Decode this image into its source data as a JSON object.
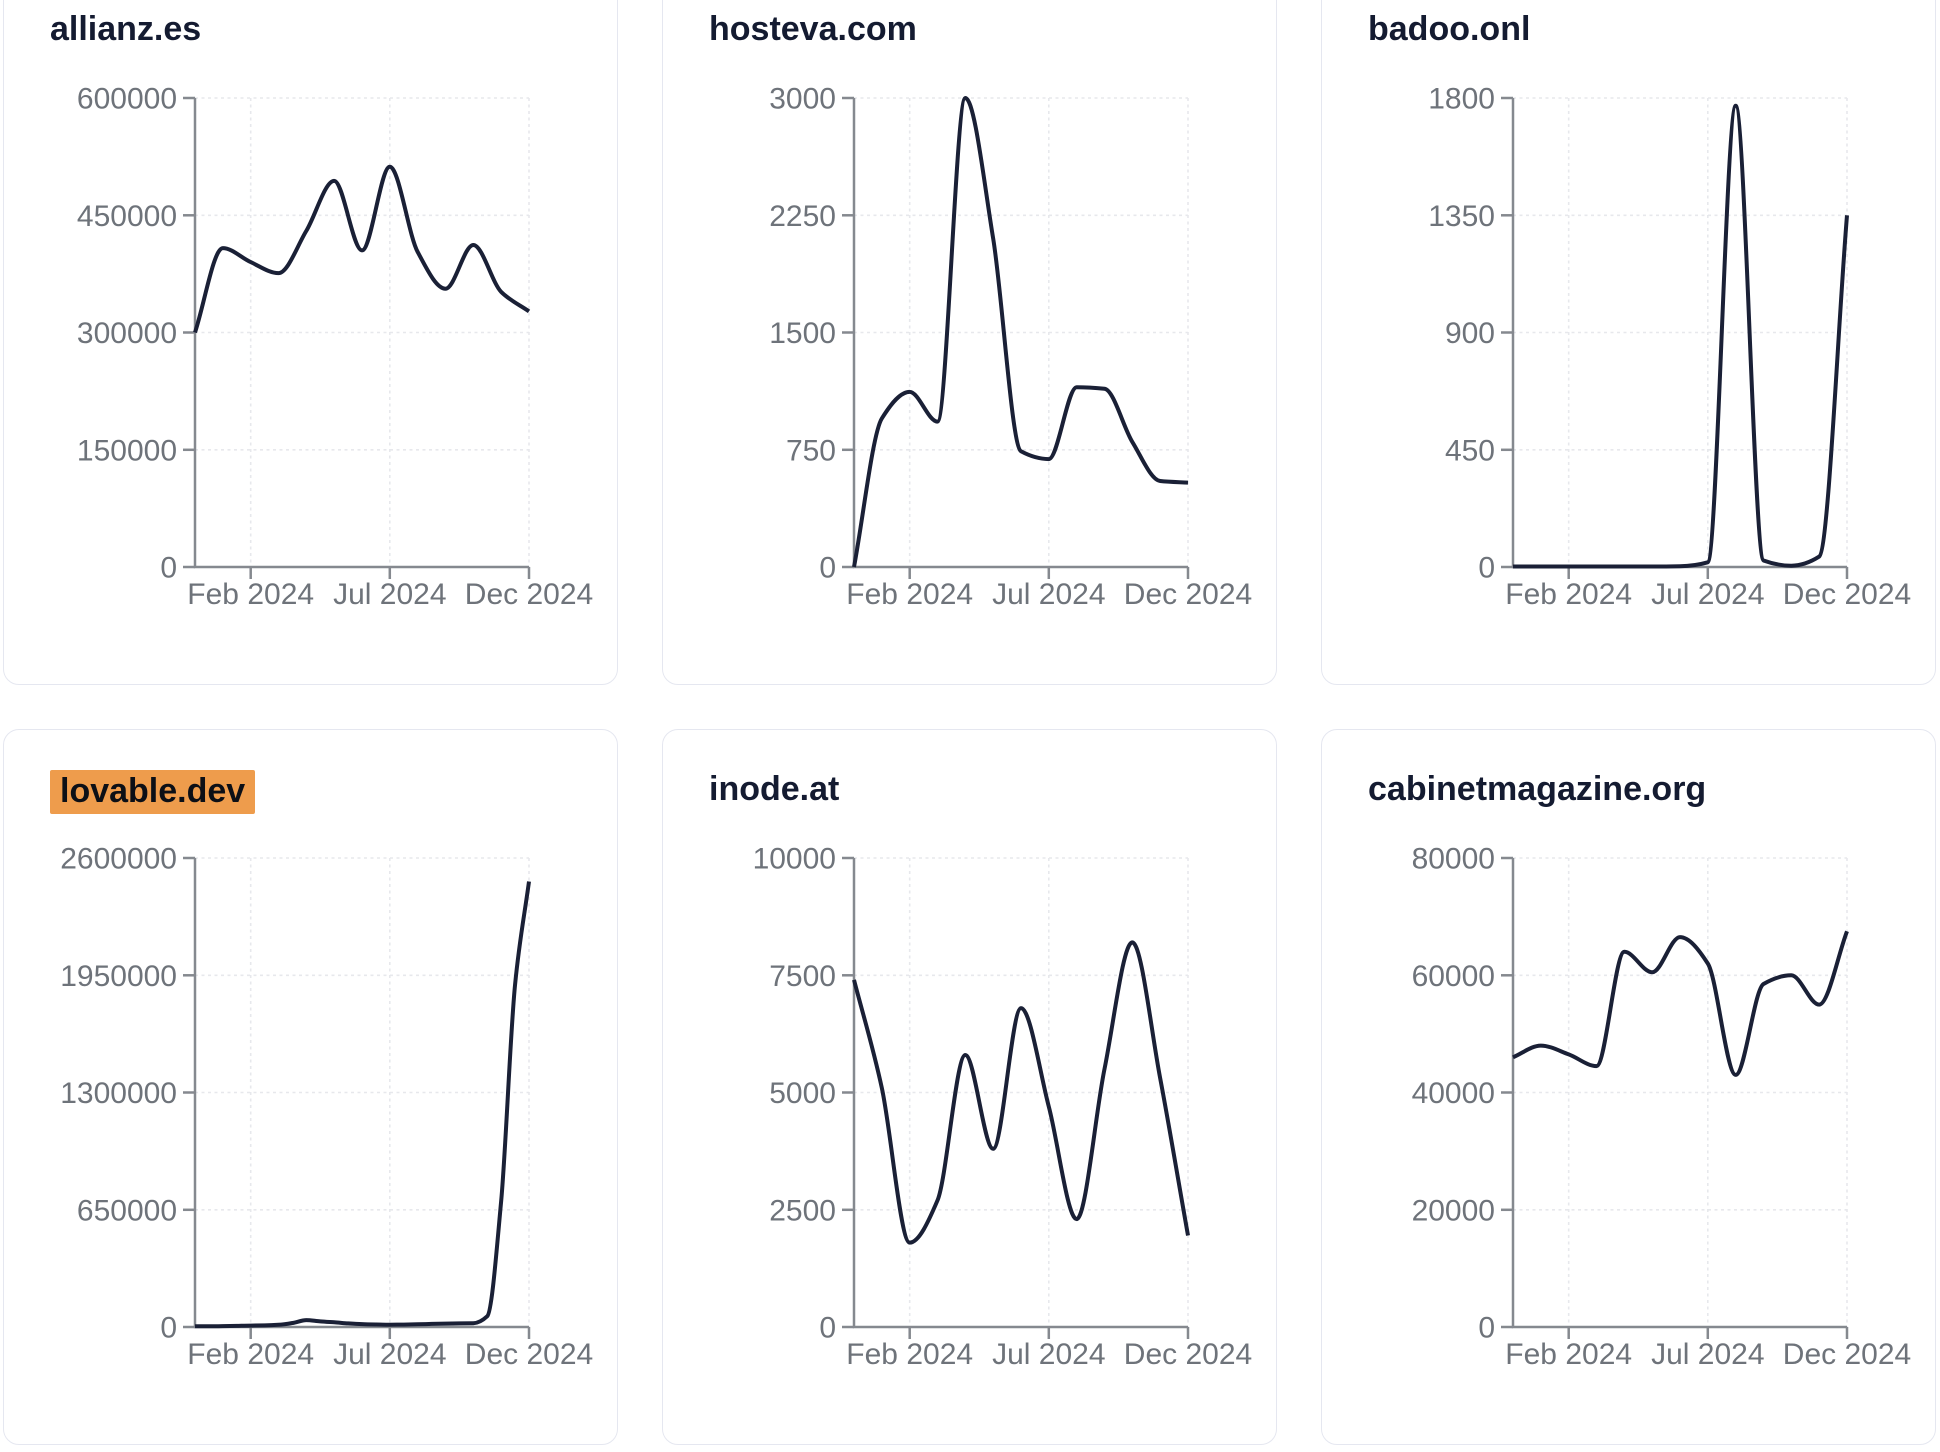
{
  "page": {
    "kind": "website-traffic-dashboard",
    "x_axis_tick_labels": [
      "Feb 2024",
      "Jul 2024",
      "Dec 2024"
    ]
  },
  "colors": {
    "line": "#1a2036",
    "title_text": "#141b31",
    "tick_label": "#6e737a",
    "axis": "#85898f",
    "grid_line": "#e7e8ec",
    "card_border": "#e5e7f0",
    "card_bg": "#ffffff",
    "page_bg": "#ffffff",
    "highlight_bg": "#ee9c4c",
    "highlight_text": "#0c0f16"
  },
  "chart_data": [
    {
      "type": "line",
      "title": "allianz.es",
      "title_highlighted": false,
      "x_tick_labels": [
        "Feb 2024",
        "Jul 2024",
        "Dec 2024"
      ],
      "x_tick_indices": [
        2,
        7,
        12
      ],
      "y_ticks": [
        0,
        150000,
        300000,
        450000,
        600000
      ],
      "ylim": [
        0,
        600000
      ],
      "grid": true,
      "values": [
        300000,
        408000,
        390000,
        376000,
        430000,
        494000,
        405000,
        512000,
        403000,
        356000,
        412000,
        352000,
        327000
      ]
    },
    {
      "type": "line",
      "title": "hosteva.com",
      "title_highlighted": false,
      "x_tick_labels": [
        "Feb 2024",
        "Jul 2024",
        "Dec 2024"
      ],
      "x_tick_indices": [
        2,
        7,
        12
      ],
      "y_ticks": [
        0,
        750,
        1500,
        2250,
        3000
      ],
      "ylim": [
        0,
        3000
      ],
      "grid": true,
      "values": [
        0,
        950,
        1120,
        930,
        3000,
        2100,
        740,
        690,
        1150,
        1140,
        800,
        550,
        540
      ]
    },
    {
      "type": "line",
      "title": "badoo.onl",
      "title_highlighted": false,
      "x_tick_labels": [
        "Feb 2024",
        "Jul 2024",
        "Dec 2024"
      ],
      "x_tick_indices": [
        2,
        7,
        12
      ],
      "y_ticks": [
        0,
        450,
        900,
        1350,
        1800
      ],
      "ylim": [
        0,
        1800
      ],
      "grid": true,
      "values": [
        2,
        2,
        2,
        2,
        2,
        2,
        3,
        18,
        1770,
        25,
        5,
        40,
        1350
      ]
    },
    {
      "type": "line",
      "title": "lovable.dev",
      "title_highlighted": true,
      "x_tick_labels": [
        "Feb 2024",
        "Jul 2024",
        "Dec 2024"
      ],
      "x_tick_indices": [
        4,
        14,
        24
      ],
      "y_ticks": [
        0,
        650000,
        1300000,
        1950000,
        2600000
      ],
      "ylim": [
        0,
        2600000
      ],
      "grid": true,
      "values": [
        4000,
        4000,
        5000,
        6000,
        8000,
        9000,
        12000,
        22000,
        38000,
        31000,
        26000,
        20000,
        16000,
        14000,
        13000,
        13500,
        15000,
        17000,
        19000,
        20000,
        21000,
        60000,
        700000,
        1900000,
        2470000
      ]
    },
    {
      "type": "line",
      "title": "inode.at",
      "title_highlighted": false,
      "x_tick_labels": [
        "Feb 2024",
        "Jul 2024",
        "Dec 2024"
      ],
      "x_tick_indices": [
        2,
        7,
        12
      ],
      "y_ticks": [
        0,
        2500,
        5000,
        7500,
        10000
      ],
      "ylim": [
        0,
        10000
      ],
      "grid": true,
      "values": [
        7400,
        5100,
        1800,
        2700,
        5800,
        3800,
        6800,
        4700,
        2300,
        5500,
        8200,
        5300,
        1950
      ]
    },
    {
      "type": "line",
      "title": "cabinetmagazine.org",
      "title_highlighted": false,
      "x_tick_labels": [
        "Feb 2024",
        "Jul 2024",
        "Dec 2024"
      ],
      "x_tick_indices": [
        2,
        7,
        12
      ],
      "y_ticks": [
        0,
        20000,
        40000,
        60000,
        80000
      ],
      "ylim": [
        0,
        80000
      ],
      "grid": true,
      "values": [
        46000,
        48000,
        46500,
        44500,
        64000,
        60500,
        66500,
        62000,
        43000,
        58500,
        60000,
        55000,
        67500
      ]
    }
  ]
}
